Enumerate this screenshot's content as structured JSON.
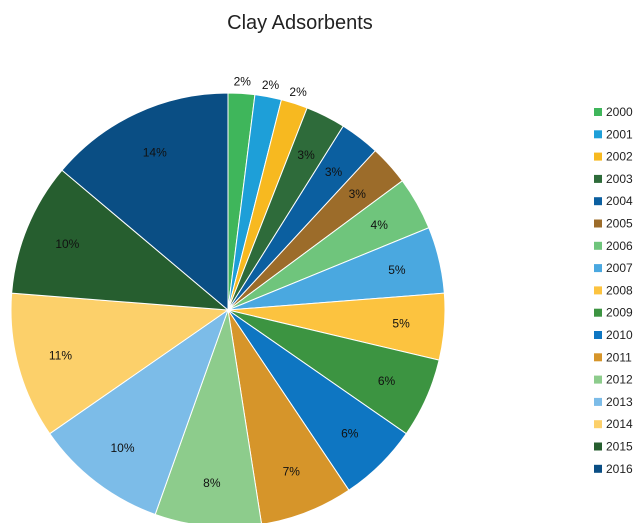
{
  "chart_data": {
    "type": "pie",
    "title": "Clay Adsorbents",
    "categories": [
      "2000",
      "2001",
      "2002",
      "2003",
      "2004",
      "2005",
      "2006",
      "2007",
      "2008",
      "2009",
      "2010",
      "2011",
      "2012",
      "2013",
      "2014",
      "2015",
      "2016"
    ],
    "values": [
      2,
      2,
      2,
      3,
      3,
      3,
      4,
      5,
      5,
      6,
      6,
      7,
      8,
      10,
      11,
      10,
      14
    ],
    "data_labels": [
      "2%",
      "2%",
      "2%",
      "3%",
      "3%",
      "3%",
      "4%",
      "5%",
      "5%",
      "6%",
      "6%",
      "7%",
      "8%",
      "10%",
      "11%",
      "10%",
      "14%"
    ],
    "colors": [
      "#3fb65b",
      "#1e9fd8",
      "#f7b920",
      "#2e6b3a",
      "#0b5fa0",
      "#9c6c2a",
      "#6fc57c",
      "#4aa8e0",
      "#fcc33f",
      "#3c9441",
      "#0e76c2",
      "#d6952a",
      "#8dcc8c",
      "#7cbce8",
      "#fcd06a",
      "#265e2f",
      "#0a4e84"
    ],
    "legend_position": "right"
  }
}
